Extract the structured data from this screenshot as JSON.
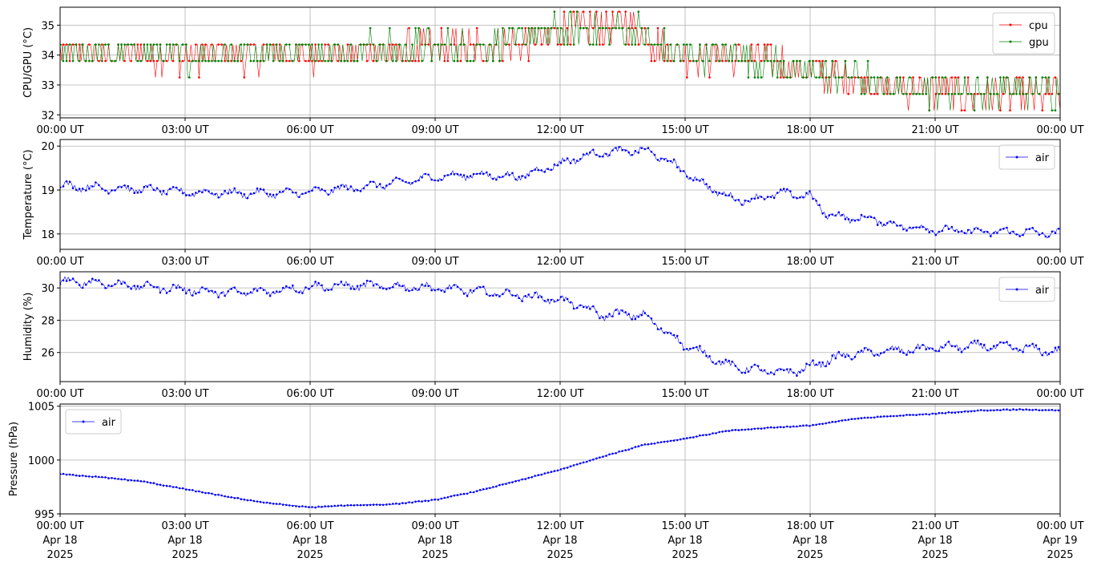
{
  "colors": {
    "cpu": "#ff0000",
    "gpu": "#008000",
    "air": "#0000ff",
    "grid": "#b0b0b0",
    "axis": "#000000"
  },
  "chart_data": [
    {
      "type": "line",
      "ylabel": "CPU/GPU (°C)",
      "xlabel": "",
      "ylim": [
        31.9,
        35.6
      ],
      "yticks": [
        32,
        33,
        34,
        35
      ],
      "xticks": [
        "00:00 UT",
        "03:00 UT",
        "06:00 UT",
        "09:00 UT",
        "12:00 UT",
        "15:00 UT",
        "18:00 UT",
        "21:00 UT",
        "00:00 UT"
      ],
      "grid": true,
      "legend_position": "top-right",
      "series": [
        {
          "name": "cpu",
          "color": "#ff0000",
          "style": "noisy",
          "noise": 0.55,
          "x": [
            0,
            3,
            6,
            9,
            10.5,
            11.5,
            12,
            13,
            14,
            14.3,
            15,
            16,
            17,
            18.3,
            19,
            19.8,
            21,
            22,
            24
          ],
          "y": [
            34.0,
            34.0,
            34.0,
            34.2,
            34.3,
            34.5,
            34.8,
            35.0,
            34.9,
            34.3,
            34.0,
            34.0,
            33.9,
            33.3,
            33.2,
            32.9,
            32.8,
            32.7,
            32.6
          ]
        },
        {
          "name": "gpu",
          "color": "#008000",
          "style": "noisy",
          "noise": 0.5,
          "x": [
            0,
            3,
            6,
            9,
            10.5,
            11.5,
            12,
            13,
            14,
            14.3,
            15,
            16,
            17,
            18.3,
            19,
            19.8,
            21,
            22,
            24
          ],
          "y": [
            34.1,
            34.0,
            34.1,
            34.3,
            34.4,
            34.6,
            34.8,
            34.9,
            34.8,
            34.3,
            34.0,
            34.0,
            33.8,
            33.4,
            33.3,
            32.9,
            32.9,
            32.8,
            32.8
          ]
        }
      ]
    },
    {
      "type": "line",
      "ylabel": "Temperature (°C)",
      "xlabel": "",
      "ylim": [
        17.65,
        20.15
      ],
      "yticks": [
        18,
        19,
        20
      ],
      "xticks": [
        "00:00 UT",
        "03:00 UT",
        "06:00 UT",
        "09:00 UT",
        "12:00 UT",
        "15:00 UT",
        "18:00 UT",
        "21:00 UT",
        "00:00 UT"
      ],
      "grid": true,
      "legend_position": "top-right",
      "series": [
        {
          "name": "air",
          "color": "#0000ff",
          "style": "wavy",
          "noise": 0.12,
          "x": [
            0,
            1,
            2,
            3,
            4,
            5,
            6,
            7,
            8,
            9,
            10,
            11,
            11.5,
            12,
            12.5,
            13,
            13.5,
            14,
            14.3,
            14.7,
            15,
            15.5,
            16,
            16.5,
            17,
            17.5,
            18,
            18.4,
            19,
            19.5,
            20,
            21,
            22,
            23,
            24
          ],
          "y": [
            19.1,
            19.05,
            19.02,
            18.95,
            18.93,
            18.92,
            18.95,
            19.05,
            19.15,
            19.3,
            19.35,
            19.3,
            19.45,
            19.6,
            19.75,
            19.85,
            19.88,
            19.9,
            19.8,
            19.6,
            19.4,
            19.1,
            18.85,
            18.75,
            18.88,
            18.92,
            18.85,
            18.45,
            18.35,
            18.35,
            18.2,
            18.1,
            18.05,
            18.05,
            18.0
          ]
        }
      ]
    },
    {
      "type": "line",
      "ylabel": "Humidity (%)",
      "xlabel": "",
      "ylim": [
        24.2,
        31.0
      ],
      "yticks": [
        26,
        28,
        30
      ],
      "xticks": [
        "00:00 UT",
        "03:00 UT",
        "06:00 UT",
        "09:00 UT",
        "12:00 UT",
        "15:00 UT",
        "18:00 UT",
        "21:00 UT",
        "00:00 UT"
      ],
      "grid": true,
      "legend_position": "top-right",
      "series": [
        {
          "name": "air",
          "color": "#0000ff",
          "style": "wavy",
          "noise": 0.35,
          "x": [
            0,
            1,
            2,
            3,
            4,
            5,
            6,
            7,
            8,
            9,
            10,
            11,
            12,
            12.5,
            13,
            13.5,
            14,
            14.5,
            15,
            15.5,
            16,
            16.5,
            17,
            17.5,
            18,
            18.5,
            19,
            20,
            21,
            22,
            23,
            24
          ],
          "y": [
            30.4,
            30.3,
            30.1,
            29.9,
            29.7,
            29.8,
            30.05,
            30.15,
            30.1,
            30.0,
            29.8,
            29.55,
            29.25,
            28.9,
            28.3,
            28.4,
            28.3,
            27.4,
            26.4,
            25.9,
            25.2,
            25.0,
            24.8,
            24.8,
            25.1,
            25.6,
            25.9,
            26.1,
            26.3,
            26.4,
            26.3,
            26.0
          ]
        }
      ]
    },
    {
      "type": "line",
      "ylabel": "Pressure (hPa)",
      "xlabel": "",
      "ylim": [
        995,
        1005.2
      ],
      "yticks": [
        995,
        1000,
        1005
      ],
      "xticks": [
        "00:00 UT",
        "03:00 UT",
        "06:00 UT",
        "09:00 UT",
        "12:00 UT",
        "15:00 UT",
        "18:00 UT",
        "21:00 UT",
        "00:00 UT"
      ],
      "xticks_date": [
        "Apr 18",
        "Apr 18",
        "Apr 18",
        "Apr 18",
        "Apr 18",
        "Apr 18",
        "Apr 18",
        "Apr 18",
        "Apr 19"
      ],
      "xticks_year": [
        "2025",
        "2025",
        "2025",
        "2025",
        "2025",
        "2025",
        "2025",
        "2025",
        "2025"
      ],
      "grid": true,
      "legend_position": "top-left",
      "series": [
        {
          "name": "air",
          "color": "#0000ff",
          "style": "smooth",
          "noise": 0.08,
          "x": [
            0,
            1,
            2,
            3,
            4,
            5,
            6,
            7,
            8,
            9,
            10,
            11,
            12,
            13,
            14,
            15,
            16,
            17,
            18,
            19,
            20,
            21,
            22,
            23,
            24
          ],
          "y": [
            998.7,
            998.4,
            998.0,
            997.3,
            996.6,
            996.0,
            995.6,
            995.8,
            995.9,
            996.3,
            997.1,
            998.1,
            999.1,
            1000.3,
            1001.4,
            1002.0,
            1002.7,
            1003.0,
            1003.2,
            1003.8,
            1004.1,
            1004.3,
            1004.6,
            1004.7,
            1004.6
          ]
        }
      ]
    }
  ]
}
